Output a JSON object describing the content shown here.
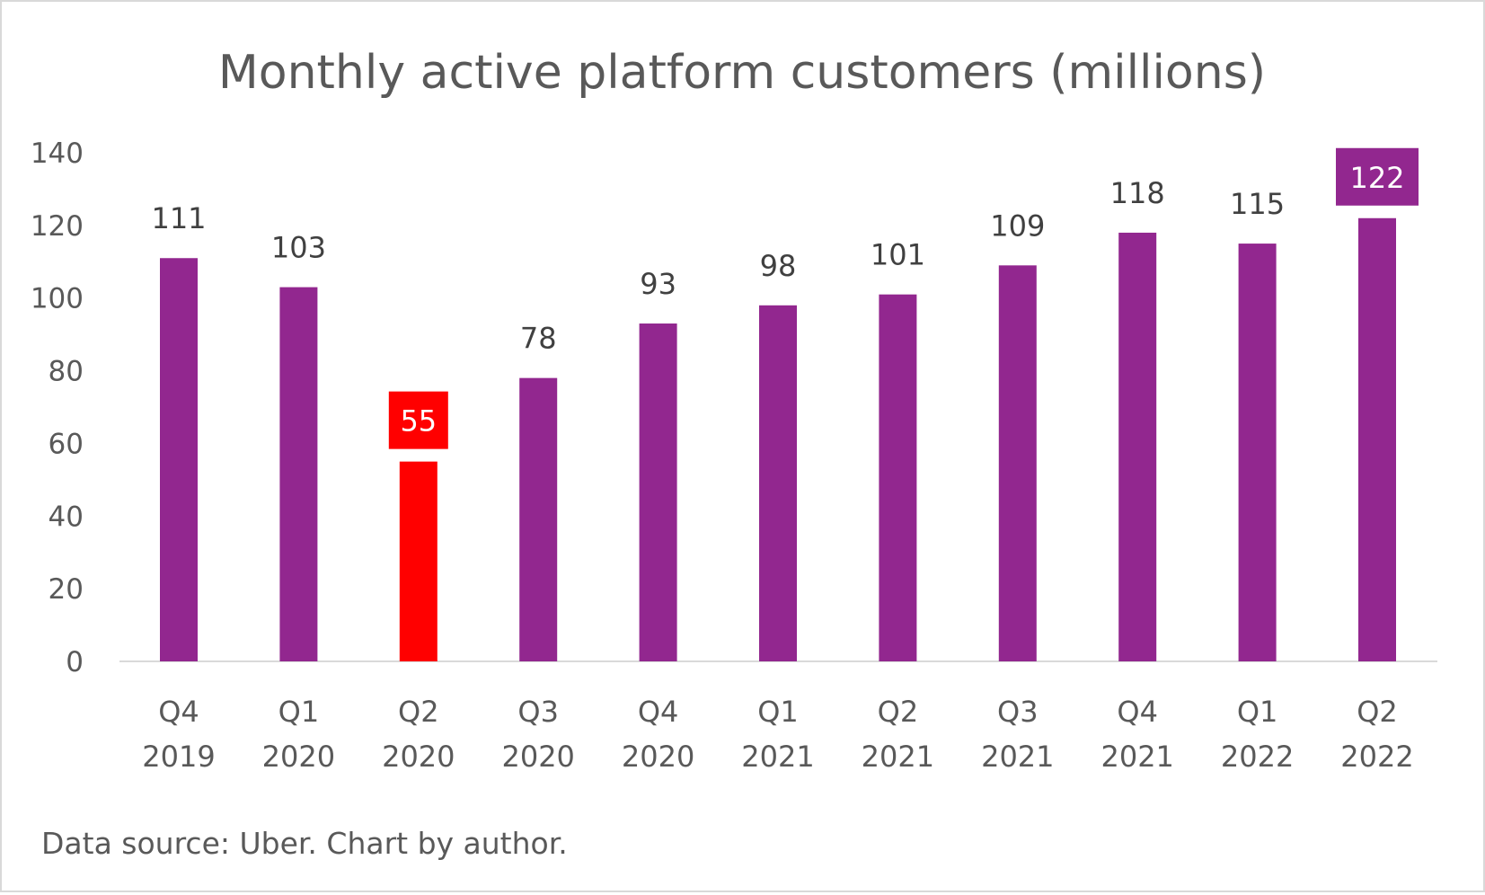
{
  "chart_data": {
    "type": "bar",
    "title": "Monthly active platform customers (millions)",
    "categories": [
      [
        "Q4",
        "2019"
      ],
      [
        "Q1",
        "2020"
      ],
      [
        "Q2",
        "2020"
      ],
      [
        "Q3",
        "2020"
      ],
      [
        "Q4",
        "2020"
      ],
      [
        "Q1",
        "2021"
      ],
      [
        "Q2",
        "2021"
      ],
      [
        "Q3",
        "2021"
      ],
      [
        "Q4",
        "2021"
      ],
      [
        "Q1",
        "2022"
      ],
      [
        "Q2",
        "2022"
      ]
    ],
    "values": [
      111,
      103,
      55,
      78,
      93,
      98,
      101,
      109,
      118,
      115,
      122
    ],
    "ylim": [
      0,
      140
    ],
    "yticks": [
      0,
      20,
      40,
      60,
      80,
      100,
      120,
      140
    ],
    "grid": false,
    "colors": {
      "default": "#92278F",
      "highlight_low": "#FF0000",
      "text": "#595959",
      "axis": "#d9d9d9"
    },
    "highlighted": {
      "2": "#FF0000",
      "10": "#92278F"
    },
    "source_note": "Data source: Uber. Chart by author."
  }
}
